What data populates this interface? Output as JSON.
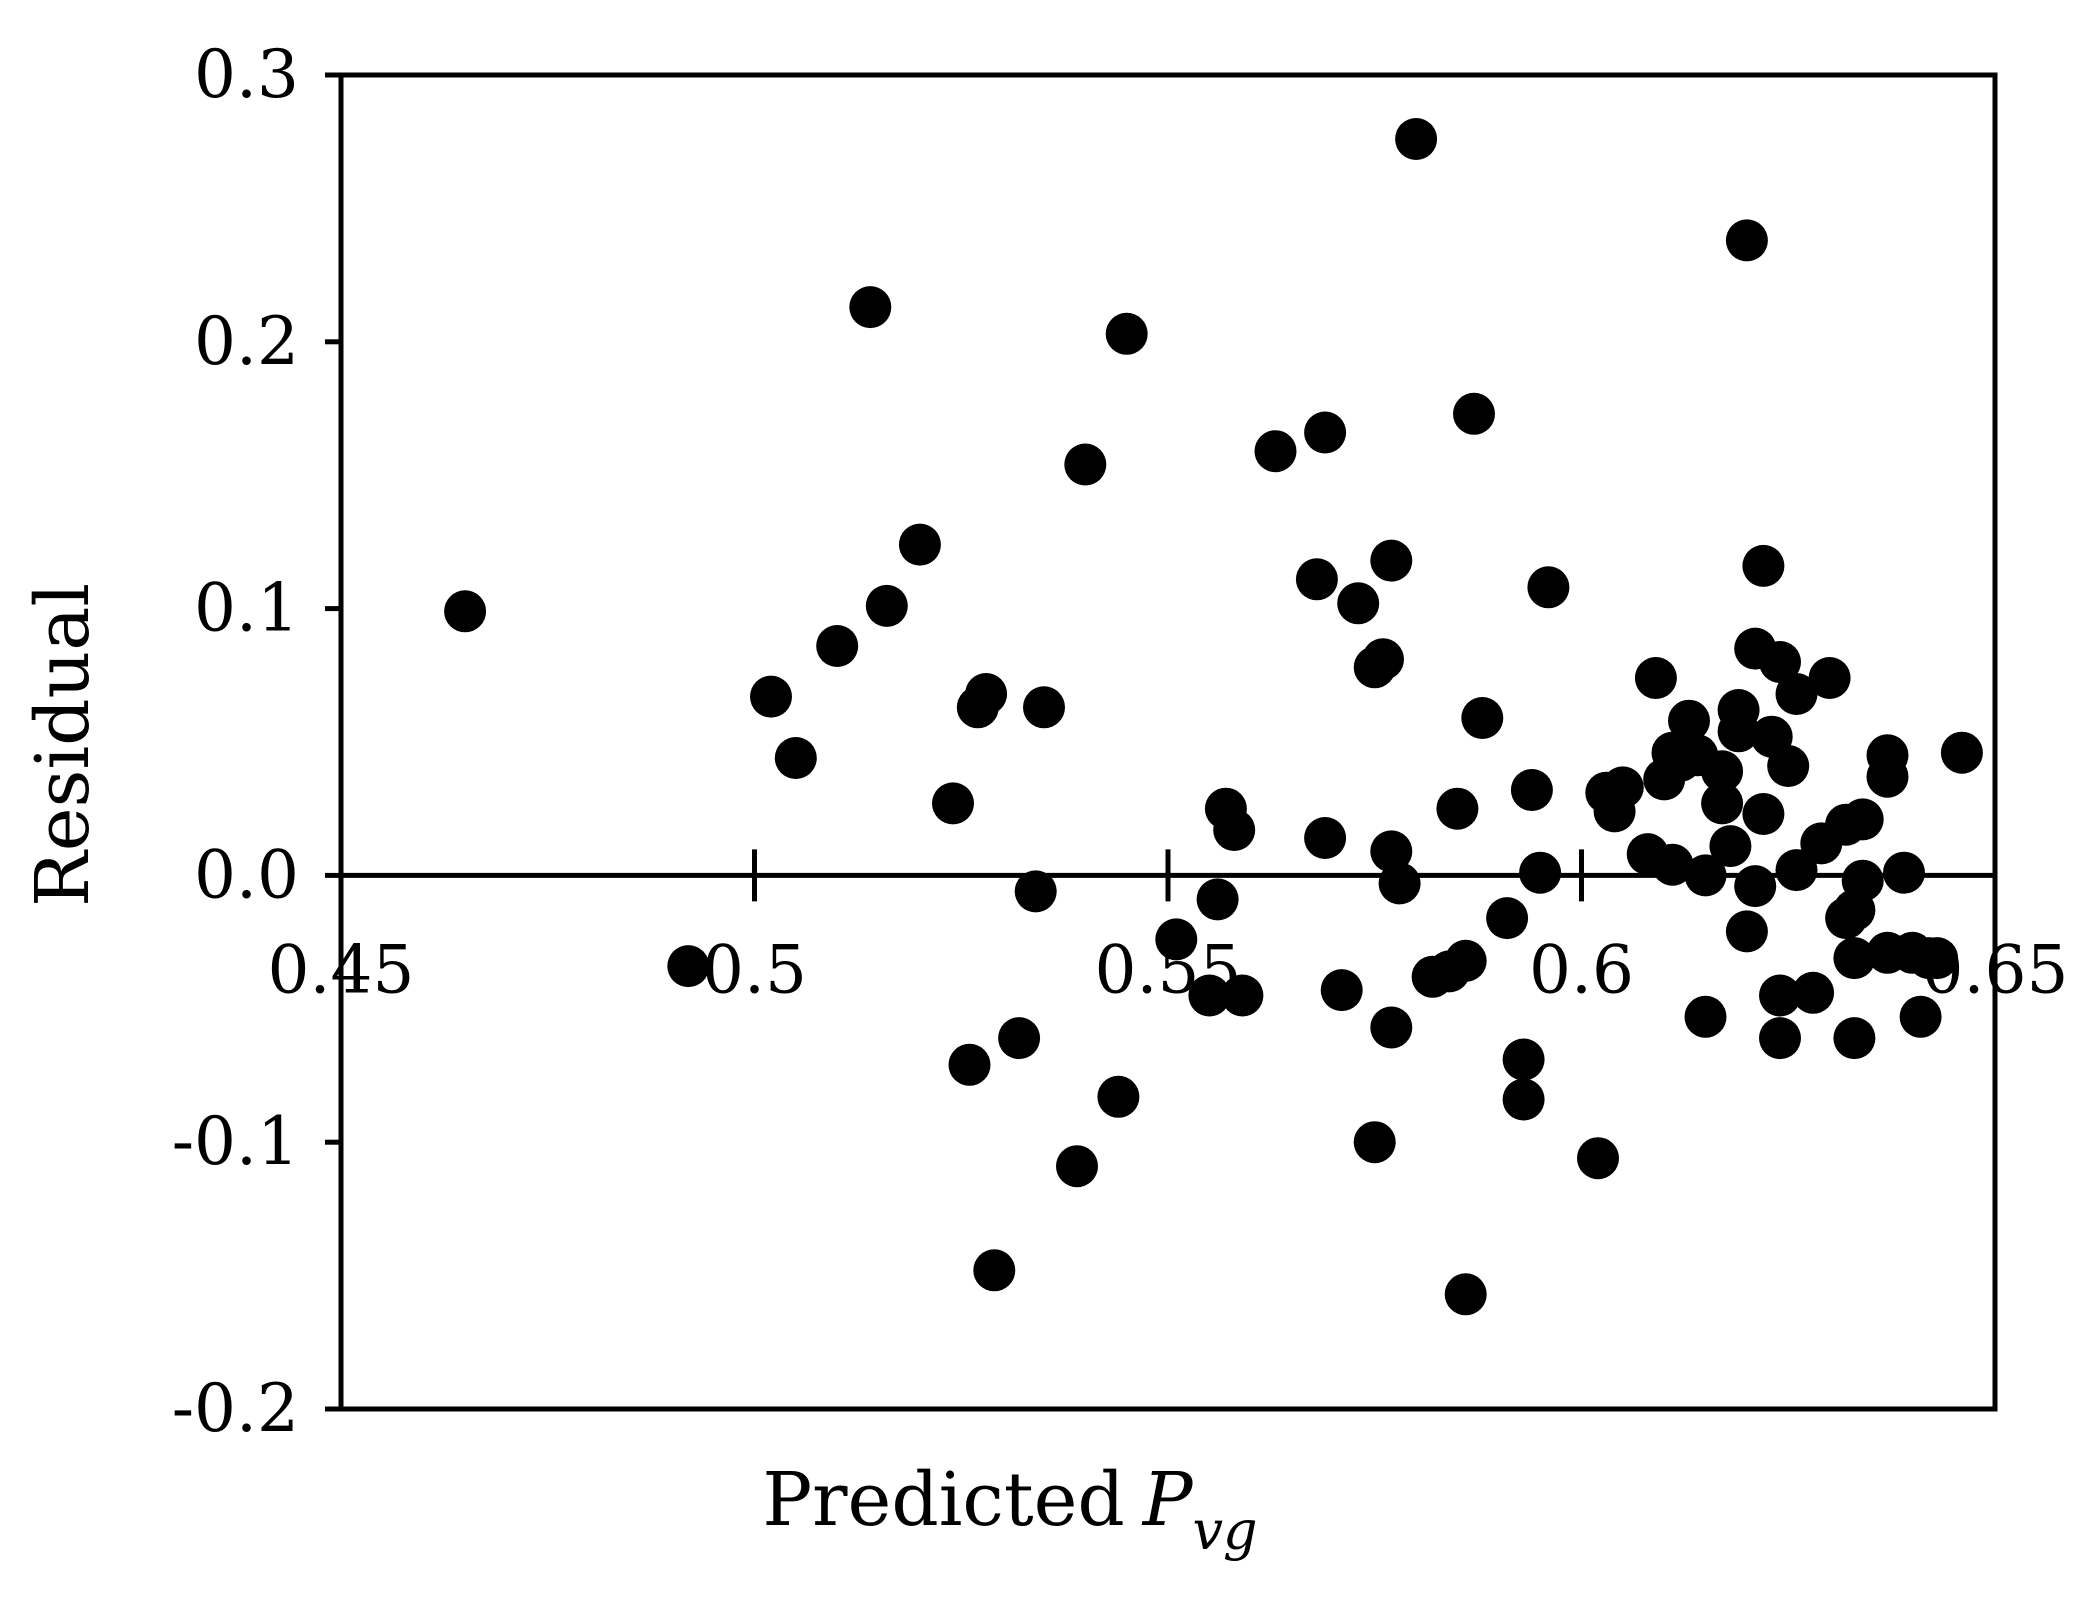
{
  "chart_data": {
    "type": "scatter",
    "xlabel": "Predicted",
    "xlabel_symbol": "P",
    "xlabel_subscript": "vg",
    "ylabel": "Residual",
    "xlim": [
      0.45,
      0.65
    ],
    "ylim": [
      -0.2,
      0.3
    ],
    "x_ticks": [
      0.45,
      0.5,
      0.55,
      0.6,
      0.65
    ],
    "x_tick_labels": [
      "0.45",
      "0.5",
      "0.55",
      "0.6",
      "0.65"
    ],
    "y_ticks": [
      -0.2,
      -0.1,
      0.0,
      0.1,
      0.2,
      0.3
    ],
    "y_tick_labels": [
      "-0.2",
      "-0.1",
      "0.0",
      "0.1",
      "0.2",
      "0.3"
    ],
    "zero_line": true,
    "grid": false,
    "legend": "none",
    "marker_color": "#000000",
    "points": [
      {
        "x": 0.465,
        "y": 0.099
      },
      {
        "x": 0.492,
        "y": -0.034
      },
      {
        "x": 0.502,
        "y": 0.067
      },
      {
        "x": 0.505,
        "y": 0.044
      },
      {
        "x": 0.51,
        "y": 0.086
      },
      {
        "x": 0.514,
        "y": 0.213
      },
      {
        "x": 0.516,
        "y": 0.101
      },
      {
        "x": 0.52,
        "y": 0.124
      },
      {
        "x": 0.524,
        "y": 0.027
      },
      {
        "x": 0.526,
        "y": -0.071
      },
      {
        "x": 0.527,
        "y": 0.063
      },
      {
        "x": 0.528,
        "y": 0.068
      },
      {
        "x": 0.529,
        "y": -0.148
      },
      {
        "x": 0.532,
        "y": -0.061
      },
      {
        "x": 0.534,
        "y": -0.006
      },
      {
        "x": 0.535,
        "y": 0.063
      },
      {
        "x": 0.539,
        "y": -0.109
      },
      {
        "x": 0.54,
        "y": 0.154
      },
      {
        "x": 0.544,
        "y": -0.083
      },
      {
        "x": 0.545,
        "y": 0.203
      },
      {
        "x": 0.551,
        "y": -0.024
      },
      {
        "x": 0.555,
        "y": -0.045
      },
      {
        "x": 0.556,
        "y": -0.009
      },
      {
        "x": 0.557,
        "y": 0.025
      },
      {
        "x": 0.558,
        "y": 0.017
      },
      {
        "x": 0.559,
        "y": -0.045
      },
      {
        "x": 0.563,
        "y": 0.159
      },
      {
        "x": 0.568,
        "y": 0.111
      },
      {
        "x": 0.569,
        "y": 0.014
      },
      {
        "x": 0.569,
        "y": 0.166
      },
      {
        "x": 0.571,
        "y": -0.043
      },
      {
        "x": 0.573,
        "y": 0.102
      },
      {
        "x": 0.575,
        "y": 0.078
      },
      {
        "x": 0.575,
        "y": -0.1
      },
      {
        "x": 0.576,
        "y": 0.081
      },
      {
        "x": 0.577,
        "y": 0.118
      },
      {
        "x": 0.577,
        "y": -0.057
      },
      {
        "x": 0.577,
        "y": 0.009
      },
      {
        "x": 0.578,
        "y": -0.003
      },
      {
        "x": 0.58,
        "y": 0.276
      },
      {
        "x": 0.582,
        "y": -0.038
      },
      {
        "x": 0.584,
        "y": -0.036
      },
      {
        "x": 0.585,
        "y": 0.025
      },
      {
        "x": 0.586,
        "y": -0.157
      },
      {
        "x": 0.586,
        "y": -0.032
      },
      {
        "x": 0.587,
        "y": 0.173
      },
      {
        "x": 0.588,
        "y": 0.059
      },
      {
        "x": 0.591,
        "y": -0.016
      },
      {
        "x": 0.593,
        "y": -0.069
      },
      {
        "x": 0.593,
        "y": -0.084
      },
      {
        "x": 0.594,
        "y": 0.032
      },
      {
        "x": 0.595,
        "y": 0.001
      },
      {
        "x": 0.596,
        "y": 0.108
      },
      {
        "x": 0.602,
        "y": -0.106
      },
      {
        "x": 0.603,
        "y": 0.031
      },
      {
        "x": 0.604,
        "y": 0.024
      },
      {
        "x": 0.605,
        "y": 0.033
      },
      {
        "x": 0.608,
        "y": 0.008
      },
      {
        "x": 0.609,
        "y": 0.074
      },
      {
        "x": 0.61,
        "y": 0.036
      },
      {
        "x": 0.611,
        "y": 0.046
      },
      {
        "x": 0.611,
        "y": 0.004
      },
      {
        "x": 0.612,
        "y": 0.043
      },
      {
        "x": 0.613,
        "y": 0.058
      },
      {
        "x": 0.614,
        "y": 0.045
      },
      {
        "x": 0.615,
        "y": -0.053
      },
      {
        "x": 0.615,
        "y": 0.0
      },
      {
        "x": 0.617,
        "y": 0.039
      },
      {
        "x": 0.617,
        "y": 0.027
      },
      {
        "x": 0.618,
        "y": 0.011
      },
      {
        "x": 0.619,
        "y": 0.054
      },
      {
        "x": 0.619,
        "y": 0.062
      },
      {
        "x": 0.62,
        "y": -0.021
      },
      {
        "x": 0.62,
        "y": 0.238
      },
      {
        "x": 0.621,
        "y": 0.085
      },
      {
        "x": 0.621,
        "y": -0.004
      },
      {
        "x": 0.622,
        "y": 0.116
      },
      {
        "x": 0.622,
        "y": 0.023
      },
      {
        "x": 0.623,
        "y": 0.052
      },
      {
        "x": 0.624,
        "y": -0.061
      },
      {
        "x": 0.624,
        "y": 0.08
      },
      {
        "x": 0.624,
        "y": -0.045
      },
      {
        "x": 0.625,
        "y": 0.041
      },
      {
        "x": 0.626,
        "y": 0.068
      },
      {
        "x": 0.626,
        "y": 0.002
      },
      {
        "x": 0.628,
        "y": -0.044
      },
      {
        "x": 0.629,
        "y": 0.012
      },
      {
        "x": 0.63,
        "y": 0.074
      },
      {
        "x": 0.632,
        "y": -0.016
      },
      {
        "x": 0.632,
        "y": 0.019
      },
      {
        "x": 0.633,
        "y": -0.031
      },
      {
        "x": 0.633,
        "y": -0.013
      },
      {
        "x": 0.633,
        "y": -0.061
      },
      {
        "x": 0.634,
        "y": 0.021
      },
      {
        "x": 0.634,
        "y": -0.002
      },
      {
        "x": 0.637,
        "y": -0.029
      },
      {
        "x": 0.637,
        "y": 0.045
      },
      {
        "x": 0.637,
        "y": 0.037
      },
      {
        "x": 0.639,
        "y": 0.001
      },
      {
        "x": 0.64,
        "y": -0.029
      },
      {
        "x": 0.641,
        "y": -0.053
      },
      {
        "x": 0.642,
        "y": -0.031
      },
      {
        "x": 0.643,
        "y": -0.031
      },
      {
        "x": 0.646,
        "y": 0.046
      }
    ]
  }
}
